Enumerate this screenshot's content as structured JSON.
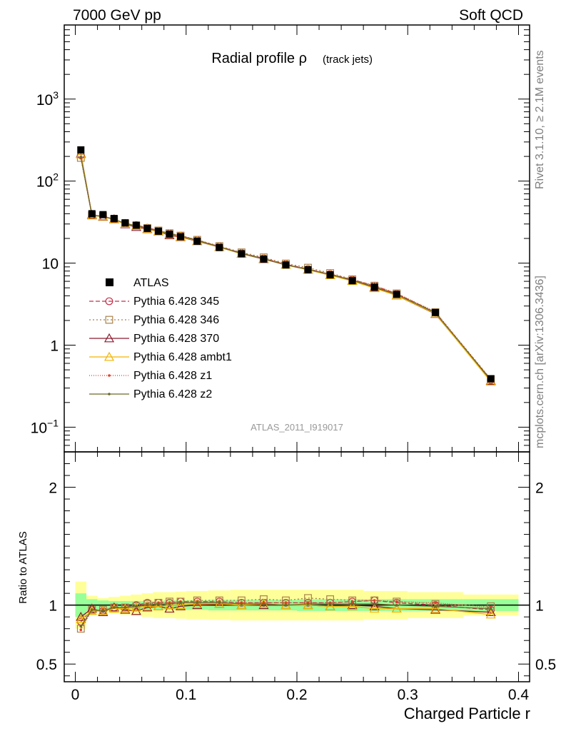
{
  "header": {
    "left": "7000 GeV pp",
    "right": "Soft QCD"
  },
  "side_labels": {
    "top": "Rivet 3.1.10, ≥ 2.1M events",
    "bottom": "mcplots.cern.ch [arXiv:1306.3436]"
  },
  "chart_data": {
    "type": "line",
    "title_main": "Radial profile ρ",
    "title_sub": "(track jets)",
    "analysis_label": "ATLAS_2011_I919017",
    "xlabel": "Charged Particle r",
    "ylabel_ratio": "Ratio to ATLAS",
    "xlim": [
      -0.01,
      0.41
    ],
    "ylim": [
      0.05,
      8000
    ],
    "ylog": true,
    "ratio_ylim": [
      0.35,
      2.3
    ],
    "x_ticks": [
      {
        "v": 0,
        "label": "0"
      },
      {
        "v": 0.1,
        "label": "0.1"
      },
      {
        "v": 0.2,
        "label": "0.2"
      },
      {
        "v": 0.3,
        "label": "0.3"
      },
      {
        "v": 0.4,
        "label": "0.4"
      }
    ],
    "y_ticks": [
      {
        "v": 0.1,
        "base": "10",
        "exp": "−1"
      },
      {
        "v": 1,
        "base": "1",
        "exp": ""
      },
      {
        "v": 10,
        "base": "10",
        "exp": ""
      },
      {
        "v": 100,
        "base": "10",
        "exp": "2"
      },
      {
        "v": 1000,
        "base": "10",
        "exp": "3"
      }
    ],
    "ratio_ticks": [
      {
        "v": 0.5,
        "label": "0.5"
      },
      {
        "v": 1,
        "label": "1"
      },
      {
        "v": 2,
        "label": "2"
      }
    ],
    "bins": [
      0,
      0.01,
      0.02,
      0.03,
      0.04,
      0.05,
      0.06,
      0.07,
      0.08,
      0.09,
      0.1,
      0.12,
      0.14,
      0.16,
      0.18,
      0.2,
      0.22,
      0.24,
      0.26,
      0.28,
      0.3,
      0.35,
      0.4
    ],
    "x": [
      0.005,
      0.015,
      0.025,
      0.035,
      0.045,
      0.055,
      0.065,
      0.075,
      0.085,
      0.095,
      0.11,
      0.13,
      0.15,
      0.17,
      0.19,
      0.21,
      0.23,
      0.25,
      0.27,
      0.29,
      0.325,
      0.375
    ],
    "data": {
      "name": "ATLAS",
      "values": [
        240,
        40,
        39,
        35,
        31,
        29,
        26.5,
        24.5,
        22.5,
        21,
        18.5,
        15.5,
        13,
        11.2,
        9.5,
        8.3,
        7.2,
        6.1,
        5.1,
        4.15,
        2.5,
        0.39
      ],
      "band_green": [
        0.1,
        0.05,
        0.04,
        0.035,
        0.035,
        0.035,
        0.035,
        0.035,
        0.04,
        0.04,
        0.04,
        0.045,
        0.045,
        0.045,
        0.045,
        0.05,
        0.05,
        0.05,
        0.05,
        0.05,
        0.05,
        0.05
      ],
      "band_yellow": [
        0.2,
        0.08,
        0.06,
        0.07,
        0.08,
        0.09,
        0.1,
        0.11,
        0.11,
        0.115,
        0.12,
        0.125,
        0.13,
        0.13,
        0.13,
        0.13,
        0.13,
        0.13,
        0.12,
        0.12,
        0.11,
        0.09
      ]
    },
    "series": [
      {
        "name": "Pythia 6.428 345",
        "color": "#c0304a",
        "dash": "6,3",
        "marker": "circle",
        "ratio": [
          0.86,
          0.96,
          0.95,
          0.98,
          0.98,
          1.0,
          1.02,
          1.02,
          1.02,
          1.03,
          1.03,
          1.03,
          1.02,
          1.02,
          1.02,
          1.02,
          1.02,
          1.03,
          1.04,
          1.02,
          1.0,
          0.96
        ]
      },
      {
        "name": "Pythia 6.428 346",
        "color": "#a8814a",
        "dash": "2,3",
        "marker": "square",
        "ratio": [
          0.8,
          0.96,
          0.96,
          0.98,
          0.98,
          0.99,
          1.01,
          1.02,
          1.03,
          1.03,
          1.04,
          1.04,
          1.04,
          1.05,
          1.04,
          1.06,
          1.05,
          1.04,
          1.04,
          1.03,
          1.01,
          0.99
        ]
      },
      {
        "name": "Pythia 6.428 370",
        "color": "#8b1a2e",
        "dash": "",
        "marker": "triangle",
        "ratio": [
          0.9,
          0.97,
          0.94,
          0.98,
          0.96,
          0.95,
          0.98,
          0.99,
          0.97,
          0.99,
          1.0,
          1.01,
          1.0,
          1.0,
          1.0,
          1.0,
          0.99,
          1.0,
          0.99,
          0.97,
          0.96,
          0.94
        ]
      },
      {
        "name": "Pythia 6.428 ambt1",
        "color": "#f2b400",
        "dash": "",
        "marker": "triangle",
        "ratio": [
          0.88,
          0.95,
          0.95,
          0.97,
          0.97,
          0.98,
          0.99,
          0.99,
          1.0,
          1.0,
          1.01,
          1.01,
          1.0,
          1.01,
          1.0,
          1.0,
          0.99,
          0.99,
          0.97,
          0.97,
          0.97,
          0.92
        ]
      },
      {
        "name": "Pythia 6.428 z1",
        "color": "#e53b2a",
        "dash": "1,2",
        "marker": "dot",
        "ratio": [
          0.79,
          0.96,
          0.96,
          0.98,
          0.98,
          0.99,
          1.01,
          1.02,
          1.02,
          1.03,
          1.03,
          1.03,
          1.02,
          1.02,
          1.02,
          1.02,
          1.02,
          1.03,
          1.04,
          1.03,
          1.02,
          0.98
        ]
      },
      {
        "name": "Pythia 6.428 z2",
        "color": "#6b6b2a",
        "dash": "",
        "marker": "dot",
        "ratio": [
          0.82,
          0.96,
          0.95,
          0.98,
          0.98,
          0.99,
          1.0,
          1.01,
          1.01,
          1.02,
          1.02,
          1.02,
          1.01,
          1.01,
          1.0,
          1.01,
          1.01,
          1.01,
          1.01,
          1.0,
          0.99,
          0.97
        ]
      }
    ]
  }
}
